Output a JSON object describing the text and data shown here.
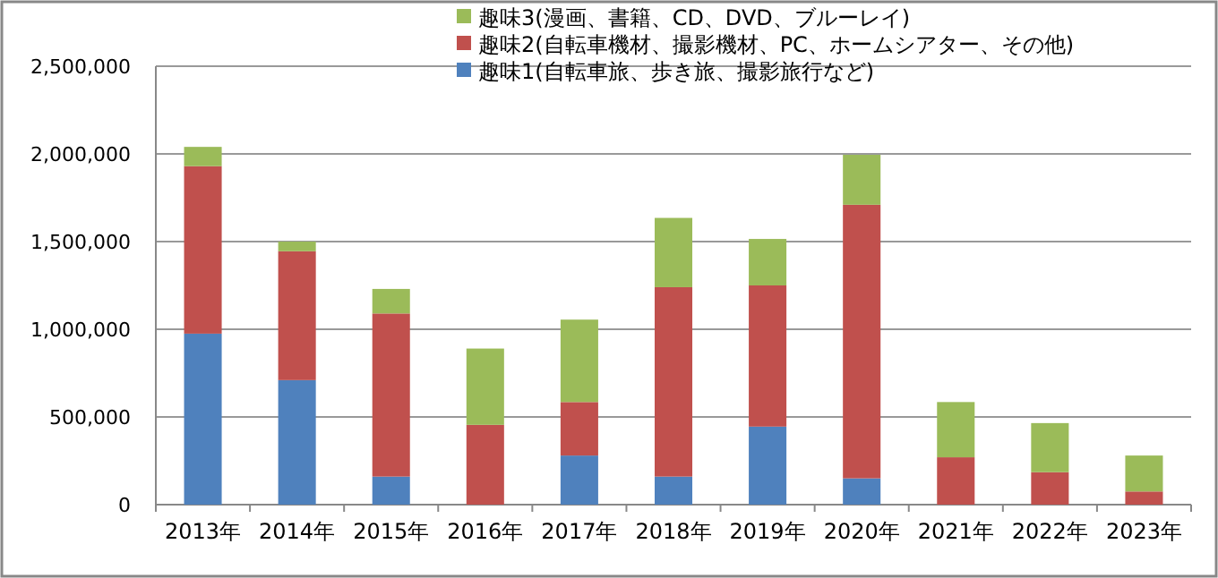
{
  "chart_data": {
    "type": "bar",
    "stacked": true,
    "categories": [
      "2013年",
      "2014年",
      "2015年",
      "2016年",
      "2017年",
      "2018年",
      "2019年",
      "2020年",
      "2021年",
      "2022年",
      "2023年"
    ],
    "series": [
      {
        "name": "趣味1(自転車旅、歩き旅、撮影旅行など)",
        "color": "#4f81bd",
        "values": [
          975000,
          710000,
          160000,
          0,
          280000,
          160000,
          445000,
          150000,
          0,
          0,
          0
        ]
      },
      {
        "name": "趣味2(自転車機材、撮影機材、PC、ホームシアター、その他)",
        "color": "#c0504d",
        "values": [
          955000,
          735000,
          930000,
          455000,
          305000,
          1080000,
          805000,
          1560000,
          270000,
          185000,
          75000
        ]
      },
      {
        "name": "趣味3(漫画、書籍、CD、DVD、ブルーレイ)",
        "color": "#9bbb59",
        "values": [
          110000,
          55000,
          140000,
          435000,
          470000,
          395000,
          265000,
          285000,
          315000,
          280000,
          205000
        ]
      }
    ],
    "ylim": [
      0,
      2500000
    ],
    "yticks": [
      {
        "value": 0,
        "label": "0"
      },
      {
        "value": 500000,
        "label": "500,000"
      },
      {
        "value": 1000000,
        "label": "1,000,000"
      },
      {
        "value": 1500000,
        "label": "1,500,000"
      },
      {
        "value": 2000000,
        "label": "2,000,000"
      },
      {
        "value": 2500000,
        "label": "2,500,000"
      }
    ],
    "grid": "y",
    "legend": "top"
  }
}
